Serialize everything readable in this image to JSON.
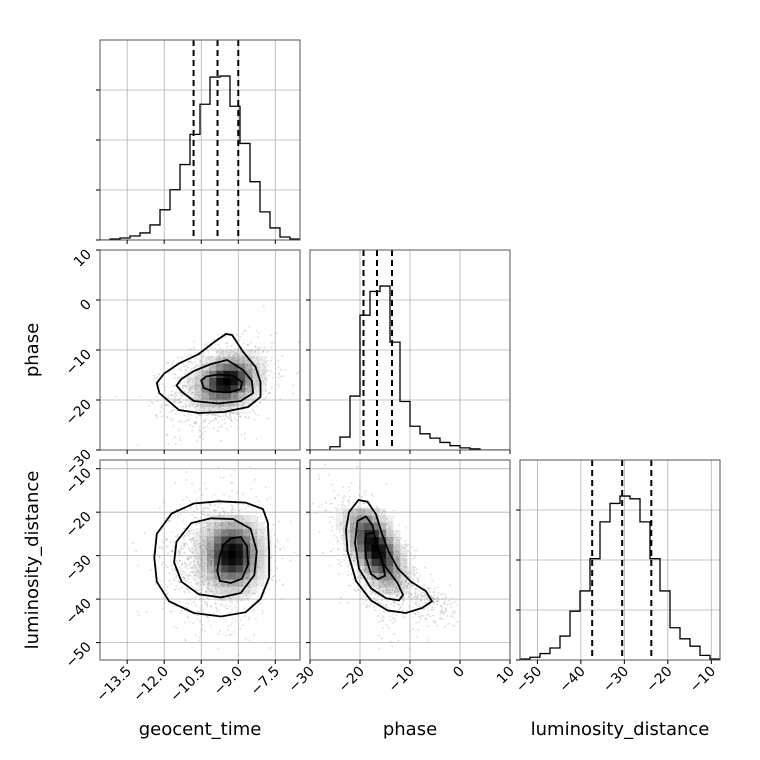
{
  "chart_data": {
    "type": "corner",
    "parameters": [
      "geocent_time",
      "phase",
      "luminosity_distance"
    ],
    "axis_labels": {
      "x": [
        "geocent_time",
        "phase",
        "luminosity_distance"
      ],
      "y": [
        "",
        "phase",
        "luminosity_distance"
      ]
    },
    "ranges": {
      "geocent_time": [
        -14.6,
        -6.5
      ],
      "phase": [
        -30,
        10
      ],
      "luminosity_distance": [
        -54,
        -8
      ]
    },
    "ticks": {
      "geocent_time": [
        -13.5,
        -12.0,
        -10.5,
        -9.0,
        -7.5
      ],
      "phase": [
        -30,
        -20,
        -10,
        0,
        10
      ],
      "phase_y": [
        -30,
        -20,
        -10,
        0,
        10
      ],
      "luminosity_distance": [
        -50,
        -40,
        -30,
        -20,
        -10
      ],
      "luminosity_distance_y": [
        -50,
        -40,
        -30,
        -20,
        -10
      ]
    },
    "tick_labels": {
      "geocent_time": [
        "−13.5",
        "−12.0",
        "−10.5",
        "−9.0",
        "−7.5"
      ],
      "phase_y": [
        "−30",
        "−20",
        "−10",
        "0",
        "10"
      ],
      "phase_x": [
        "−30",
        "−20",
        "−10",
        "0",
        "10"
      ],
      "luminosity_distance_y": [
        "−50",
        "−40",
        "−30",
        "−20",
        "−10"
      ],
      "luminosity_distance_x": [
        "−50",
        "−40",
        "−30",
        "−20",
        "−10"
      ]
    },
    "histograms": [
      {
        "parameter": "geocent_time",
        "bin_edges": [
          -14.6,
          -14.195,
          -13.79,
          -13.385,
          -12.98,
          -12.575,
          -12.17,
          -11.765,
          -11.36,
          -10.955,
          -10.55,
          -10.145,
          -9.74,
          -9.335,
          -8.93,
          -8.525,
          -8.12,
          -7.715,
          -7.31,
          -6.905,
          -6.5
        ],
        "counts": [
          0,
          1,
          2,
          4,
          7,
          15,
          30,
          50,
          75,
          105,
          135,
          162,
          163,
          133,
          96,
          58,
          28,
          12,
          3,
          1
        ],
        "quantiles": [
          -10.81,
          -9.84,
          -9.0
        ]
      },
      {
        "parameter": "phase",
        "bin_edges": [
          -30,
          -28,
          -26,
          -24,
          -22,
          -20,
          -18,
          -16,
          -14,
          -12,
          -10,
          -8,
          -6,
          -4,
          -2,
          0,
          2,
          4,
          6,
          8,
          10
        ],
        "counts": [
          0,
          0,
          3,
          12,
          50,
          125,
          147,
          152,
          100,
          45,
          22,
          15,
          11,
          7,
          4,
          2,
          1,
          0,
          0,
          0
        ],
        "quantiles": [
          -19.3,
          -16.6,
          -13.6
        ]
      },
      {
        "parameter": "luminosity_distance",
        "bin_edges": [
          -54,
          -51.7,
          -49.4,
          -47.1,
          -44.8,
          -42.5,
          -40.2,
          -37.9,
          -35.6,
          -33.3,
          -31.0,
          -28.7,
          -26.4,
          -24.1,
          -21.8,
          -19.5,
          -17.2,
          -14.9,
          -12.6,
          -10.3,
          -8
        ],
        "counts": [
          1,
          3,
          7,
          13,
          26,
          53,
          75,
          110,
          150,
          170,
          178,
          175,
          150,
          110,
          75,
          35,
          23,
          15,
          5,
          1
        ],
        "quantiles": [
          -37.4,
          -30.5,
          -23.8
        ]
      }
    ],
    "density_panels": [
      {
        "x": "geocent_time",
        "y": "phase",
        "center": [
          -9.7,
          -17.0
        ],
        "contours": [
          {
            "level": "outer",
            "points": [
              [
                -11.8,
                -20.3
              ],
              [
                -11.4,
                -22.0
              ],
              [
                -10.6,
                -22.6
              ],
              [
                -9.6,
                -22.4
              ],
              [
                -8.6,
                -21.4
              ],
              [
                -8.1,
                -19.4
              ],
              [
                -8.1,
                -16.4
              ],
              [
                -8.3,
                -13.4
              ],
              [
                -8.8,
                -10.4
              ],
              [
                -9.25,
                -7.0
              ],
              [
                -9.5,
                -6.8
              ],
              [
                -10.0,
                -8.5
              ],
              [
                -10.6,
                -10.8
              ],
              [
                -11.4,
                -12.7
              ],
              [
                -12.0,
                -14.7
              ],
              [
                -12.3,
                -16.6
              ],
              [
                -12.2,
                -18.6
              ],
              [
                -11.8,
                -20.3
              ]
            ]
          },
          {
            "level": "middle",
            "points": [
              [
                -11.3,
                -18.3
              ],
              [
                -10.8,
                -20.2
              ],
              [
                -9.8,
                -20.7
              ],
              [
                -8.9,
                -20.2
              ],
              [
                -8.4,
                -18.6
              ],
              [
                -8.45,
                -16.2
              ],
              [
                -8.8,
                -14.0
              ],
              [
                -9.45,
                -12.0
              ],
              [
                -10.1,
                -12.8
              ],
              [
                -10.8,
                -14.2
              ],
              [
                -11.3,
                -15.8
              ],
              [
                -11.5,
                -17.1
              ],
              [
                -11.3,
                -18.3
              ]
            ]
          },
          {
            "level": "inner",
            "points": [
              [
                -10.5,
                -16.1
              ],
              [
                -10.4,
                -17.6
              ],
              [
                -10.0,
                -18.3
              ],
              [
                -9.35,
                -18.5
              ],
              [
                -8.9,
                -17.8
              ],
              [
                -8.85,
                -16.4
              ],
              [
                -9.2,
                -15.2
              ],
              [
                -9.8,
                -14.9
              ],
              [
                -10.3,
                -15.3
              ],
              [
                -10.5,
                -16.1
              ]
            ]
          }
        ],
        "density_peak": [
          -9.6,
          -17.0
        ]
      },
      {
        "x": "geocent_time",
        "y": "luminosity_distance",
        "center": [
          -9.9,
          -30.5
        ],
        "contours": [
          {
            "level": "outer",
            "points": [
              [
                -12.3,
                -25.0
              ],
              [
                -11.7,
                -20.3
              ],
              [
                -10.8,
                -18.0
              ],
              [
                -9.8,
                -17.5
              ],
              [
                -8.7,
                -17.8
              ],
              [
                -8.0,
                -19.3
              ],
              [
                -7.8,
                -22.5
              ],
              [
                -7.75,
                -29.0
              ],
              [
                -7.75,
                -35.0
              ],
              [
                -8.1,
                -40.0
              ],
              [
                -8.7,
                -43.0
              ],
              [
                -9.7,
                -44.0
              ],
              [
                -10.8,
                -43.2
              ],
              [
                -11.8,
                -40.5
              ],
              [
                -12.3,
                -36.0
              ],
              [
                -12.4,
                -30.5
              ],
              [
                -12.3,
                -25.0
              ]
            ]
          },
          {
            "level": "middle",
            "points": [
              [
                -11.5,
                -26.8
              ],
              [
                -10.9,
                -22.5
              ],
              [
                -10.1,
                -21.4
              ],
              [
                -9.2,
                -21.6
              ],
              [
                -8.5,
                -23.8
              ],
              [
                -8.25,
                -29.0
              ],
              [
                -8.35,
                -34.5
              ],
              [
                -8.9,
                -38.6
              ],
              [
                -9.7,
                -39.6
              ],
              [
                -10.6,
                -38.9
              ],
              [
                -11.3,
                -36.0
              ],
              [
                -11.6,
                -31.5
              ],
              [
                -11.5,
                -26.8
              ]
            ]
          },
          {
            "level": "inner",
            "points": [
              [
                -9.6,
                -27.5
              ],
              [
                -9.3,
                -26.0
              ],
              [
                -8.9,
                -25.7
              ],
              [
                -8.65,
                -27.8
              ],
              [
                -8.6,
                -32.0
              ],
              [
                -8.85,
                -35.3
              ],
              [
                -9.3,
                -36.3
              ],
              [
                -9.75,
                -35.8
              ],
              [
                -9.85,
                -33.5
              ],
              [
                -9.75,
                -30.0
              ],
              [
                -9.6,
                -27.5
              ]
            ]
          }
        ],
        "density_peak": [
          -9.4,
          -30.5
        ]
      },
      {
        "x": "phase",
        "y": "luminosity_distance",
        "center": [
          -17.0,
          -30.5
        ],
        "contours": [
          {
            "level": "outer",
            "points": [
              [
                -22.2,
                -20.0
              ],
              [
                -20.3,
                -17.2
              ],
              [
                -18.5,
                -17.6
              ],
              [
                -16.8,
                -20.5
              ],
              [
                -15.6,
                -25.0
              ],
              [
                -14.3,
                -29.0
              ],
              [
                -12.4,
                -33.0
              ],
              [
                -9.8,
                -36.0
              ],
              [
                -6.8,
                -38.2
              ],
              [
                -5.6,
                -40.5
              ],
              [
                -7.5,
                -42.0
              ],
              [
                -10.8,
                -43.2
              ],
              [
                -14.5,
                -42.6
              ],
              [
                -17.8,
                -40.3
              ],
              [
                -20.8,
                -35.8
              ],
              [
                -22.5,
                -29.0
              ],
              [
                -22.8,
                -24.0
              ],
              [
                -22.2,
                -20.0
              ]
            ]
          },
          {
            "level": "middle",
            "points": [
              [
                -20.5,
                -22.0
              ],
              [
                -18.8,
                -21.0
              ],
              [
                -17.5,
                -23.0
              ],
              [
                -16.8,
                -27.0
              ],
              [
                -15.4,
                -31.8
              ],
              [
                -12.5,
                -36.3
              ],
              [
                -11.4,
                -39.0
              ],
              [
                -12.2,
                -40.3
              ],
              [
                -14.8,
                -39.8
              ],
              [
                -17.8,
                -37.5
              ],
              [
                -20.2,
                -33.0
              ],
              [
                -21.0,
                -27.0
              ],
              [
                -20.5,
                -22.0
              ]
            ]
          },
          {
            "level": "inner",
            "points": [
              [
                -18.7,
                -25.0
              ],
              [
                -17.3,
                -24.8
              ],
              [
                -16.5,
                -27.5
              ],
              [
                -15.5,
                -31.6
              ],
              [
                -15.0,
                -34.6
              ],
              [
                -16.4,
                -35.4
              ],
              [
                -17.8,
                -34.2
              ],
              [
                -18.8,
                -30.5
              ],
              [
                -19.0,
                -27.0
              ],
              [
                -18.7,
                -25.0
              ]
            ]
          }
        ],
        "density_peak": [
          -17.7,
          -29.0
        ]
      }
    ]
  }
}
